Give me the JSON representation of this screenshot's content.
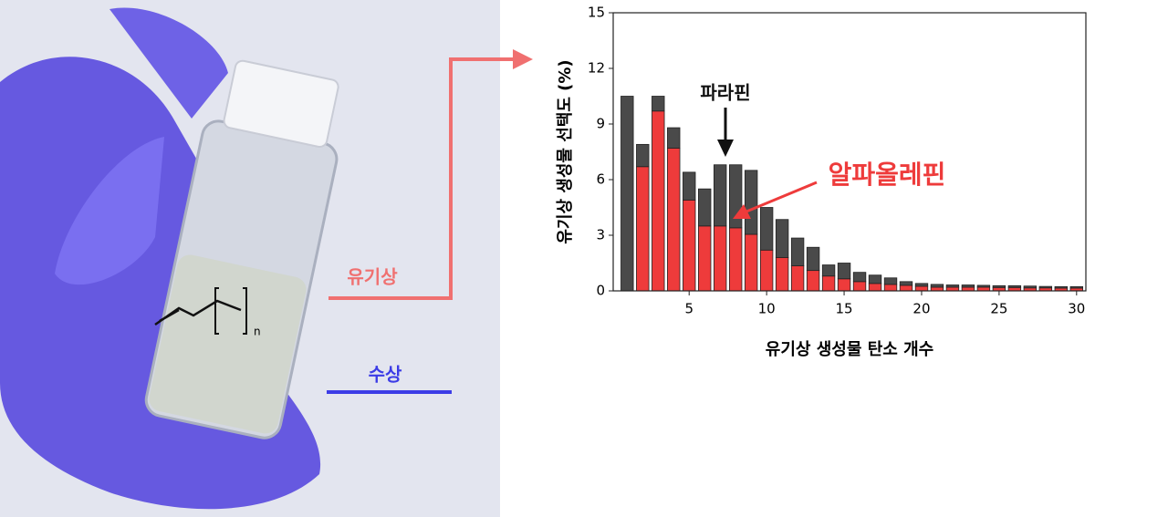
{
  "chart_data": {
    "type": "bar",
    "stacked": true,
    "x": [
      1,
      2,
      3,
      4,
      5,
      6,
      7,
      8,
      9,
      10,
      11,
      12,
      13,
      14,
      15,
      16,
      17,
      18,
      19,
      20,
      21,
      22,
      23,
      24,
      25,
      26,
      27,
      28,
      29,
      30
    ],
    "series": [
      {
        "name": "알파올레핀",
        "color": "#ee3b3b",
        "values": [
          0,
          6.7,
          9.7,
          7.7,
          4.9,
          3.5,
          3.5,
          3.4,
          3.05,
          2.2,
          1.8,
          1.35,
          1.1,
          0.8,
          0.65,
          0.5,
          0.4,
          0.35,
          0.3,
          0.25,
          0.2,
          0.2,
          0.2,
          0.2,
          0.18,
          0.18,
          0.16,
          0.16,
          0.15,
          0.15
        ]
      },
      {
        "name": "파라핀",
        "color": "#4a4a4a",
        "values": [
          10.5,
          1.2,
          0.8,
          1.1,
          1.5,
          2.0,
          3.3,
          3.4,
          3.45,
          2.3,
          2.05,
          1.5,
          1.25,
          0.6,
          0.85,
          0.5,
          0.45,
          0.35,
          0.2,
          0.15,
          0.15,
          0.12,
          0.12,
          0.1,
          0.1,
          0.1,
          0.1,
          0.08,
          0.08,
          0.08
        ]
      }
    ],
    "x_label": "유기상 생성물 탄소 개수",
    "y_label": "유기상 생성물 선택도 (%)",
    "xlim": [
      0.1,
      30.6
    ],
    "ylim": [
      0,
      15
    ],
    "xticks": [
      5,
      10,
      15,
      20,
      25,
      30
    ],
    "yticks": [
      0,
      3,
      6,
      9,
      12,
      15
    ]
  },
  "photo": {
    "organic_phase_label": "유기상",
    "aqueous_phase_label": "수상",
    "structure_subscript": "n"
  }
}
